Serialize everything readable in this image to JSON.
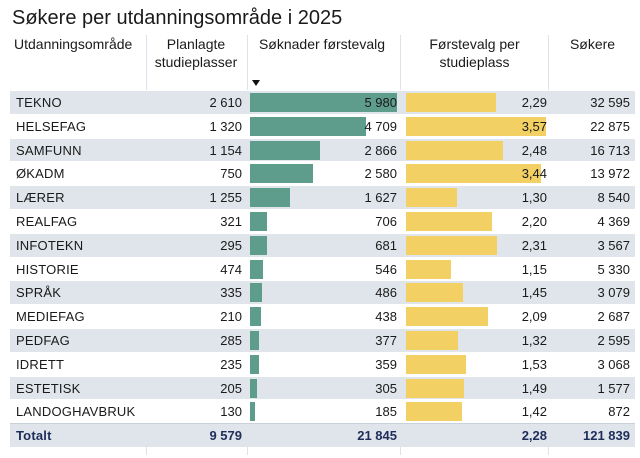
{
  "title": "Søkere per utdanningsområde i 2025",
  "headers": {
    "omrade": "Utdanningsområde",
    "planlagte": "Planlagte studieplasser",
    "soknader": "Søknader førstevalg",
    "per_plass": "Førstevalg per studieplass",
    "sokere": "Søkere"
  },
  "colors": {
    "bar_soknader": "#5e9c8c",
    "bar_per_plass": "#f2d064",
    "row_shade": "#dfe5eb",
    "total_text": "#1f2d5a"
  },
  "chart_data": {
    "type": "table",
    "title": "Søkere per utdanningsområde i 2025",
    "sorted_by": "Søknader førstevalg",
    "sort_direction": "descending",
    "columns": [
      "Utdanningsområde",
      "Planlagte studieplasser",
      "Søknader førstevalg",
      "Førstevalg per studieplass",
      "Søkere"
    ],
    "rows": [
      {
        "omrade": "TEKNO",
        "planlagte": "2 610",
        "soknader": "5 980",
        "per_plass": "2,29",
        "sokere": "32 595",
        "soknader_value": 5980,
        "per_plass_value": 2.29
      },
      {
        "omrade": "HELSEFAG",
        "planlagte": "1 320",
        "soknader": "4 709",
        "per_plass": "3,57",
        "sokere": "22 875",
        "soknader_value": 4709,
        "per_plass_value": 3.57
      },
      {
        "omrade": "SAMFUNN",
        "planlagte": "1 154",
        "soknader": "2 866",
        "per_plass": "2,48",
        "sokere": "16 713",
        "soknader_value": 2866,
        "per_plass_value": 2.48
      },
      {
        "omrade": "ØKADM",
        "planlagte": "750",
        "soknader": "2 580",
        "per_plass": "3,44",
        "sokere": "13 972",
        "soknader_value": 2580,
        "per_plass_value": 3.44
      },
      {
        "omrade": "LÆRER",
        "planlagte": "1 255",
        "soknader": "1 627",
        "per_plass": "1,30",
        "sokere": "8 540",
        "soknader_value": 1627,
        "per_plass_value": 1.3
      },
      {
        "omrade": "REALFAG",
        "planlagte": "321",
        "soknader": "706",
        "per_plass": "2,20",
        "sokere": "4 369",
        "soknader_value": 706,
        "per_plass_value": 2.2
      },
      {
        "omrade": "INFOTEKN",
        "planlagte": "295",
        "soknader": "681",
        "per_plass": "2,31",
        "sokere": "3 567",
        "soknader_value": 681,
        "per_plass_value": 2.31
      },
      {
        "omrade": "HISTORIE",
        "planlagte": "474",
        "soknader": "546",
        "per_plass": "1,15",
        "sokere": "5 330",
        "soknader_value": 546,
        "per_plass_value": 1.15
      },
      {
        "omrade": "SPRÅK",
        "planlagte": "335",
        "soknader": "486",
        "per_plass": "1,45",
        "sokere": "3 079",
        "soknader_value": 486,
        "per_plass_value": 1.45
      },
      {
        "omrade": "MEDIEFAG",
        "planlagte": "210",
        "soknader": "438",
        "per_plass": "2,09",
        "sokere": "2 687",
        "soknader_value": 438,
        "per_plass_value": 2.09
      },
      {
        "omrade": "PEDFAG",
        "planlagte": "285",
        "soknader": "377",
        "per_plass": "1,32",
        "sokere": "2 595",
        "soknader_value": 377,
        "per_plass_value": 1.32
      },
      {
        "omrade": "IDRETT",
        "planlagte": "235",
        "soknader": "359",
        "per_plass": "1,53",
        "sokere": "3 068",
        "soknader_value": 359,
        "per_plass_value": 1.53
      },
      {
        "omrade": "ESTETISK",
        "planlagte": "205",
        "soknader": "305",
        "per_plass": "1,49",
        "sokere": "1 577",
        "soknader_value": 305,
        "per_plass_value": 1.49
      },
      {
        "omrade": "LANDOGHAVBRUK",
        "planlagte": "130",
        "soknader": "185",
        "per_plass": "1,42",
        "sokere": "872",
        "soknader_value": 185,
        "per_plass_value": 1.42
      }
    ],
    "soknader_max": 5980,
    "per_plass_max": 3.57,
    "total": {
      "label": "Totalt",
      "planlagte": "9 579",
      "soknader": "21 845",
      "per_plass": "2,28",
      "sokere": "121 839"
    }
  }
}
